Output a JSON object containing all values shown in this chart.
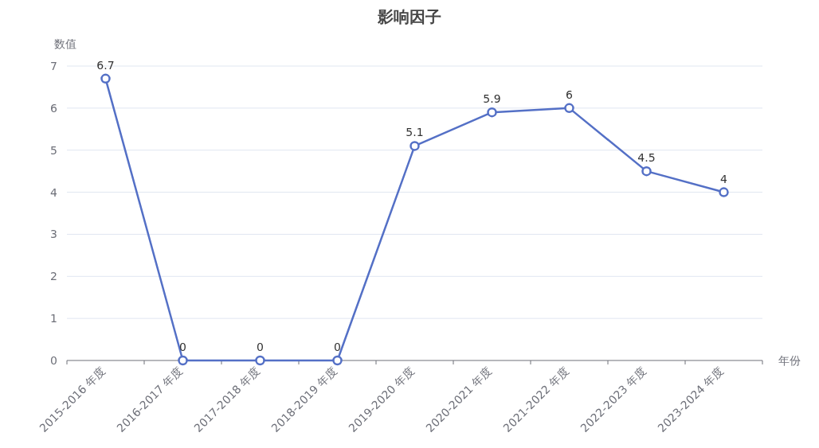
{
  "chart_data": {
    "type": "line",
    "title": "影响因子",
    "xlabel": "年份",
    "ylabel": "数值",
    "categories": [
      "2015-2016 年度",
      "2016-2017 年度",
      "2017-2018 年度",
      "2018-2019 年度",
      "2019-2020 年度",
      "2020-2021 年度",
      "2021-2022 年度",
      "2022-2023 年度",
      "2023-2024 年度"
    ],
    "series": [
      {
        "color": "#5470c6",
        "values": [
          6.7,
          0,
          0,
          0,
          5.1,
          5.9,
          6,
          4.5,
          4
        ]
      }
    ],
    "ylim": [
      0,
      7
    ],
    "yticks": [
      0,
      1,
      2,
      3,
      4,
      5,
      6,
      7
    ],
    "grid": "y",
    "marker": "circle",
    "line_style": "solid",
    "data_labels": true
  }
}
